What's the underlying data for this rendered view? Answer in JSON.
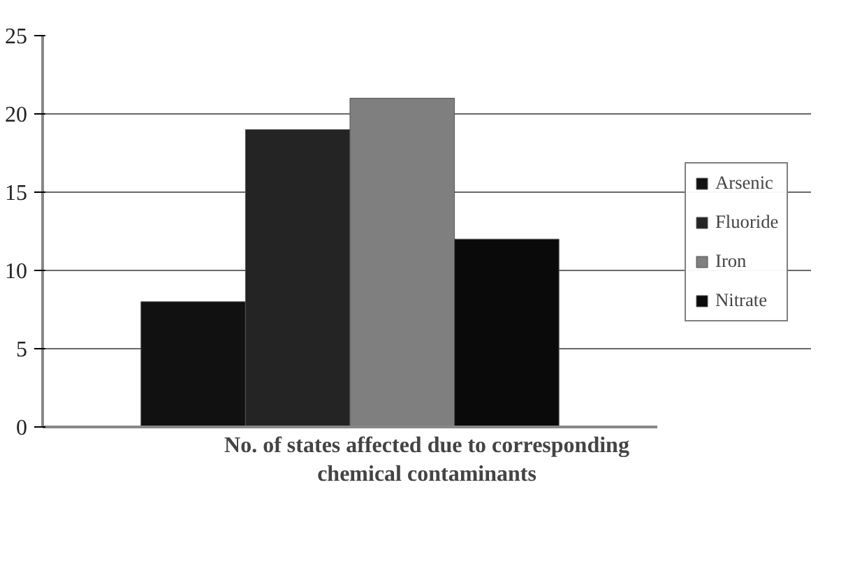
{
  "chart_data": {
    "type": "bar",
    "xlabel": "No. of states affected due to corresponding chemical contaminants",
    "categories": [
      null
    ],
    "series": [
      {
        "name": "Arsenic",
        "color": "#111111",
        "values": [
          8
        ]
      },
      {
        "name": "Fluoride",
        "color": "#242424",
        "values": [
          19
        ]
      },
      {
        "name": "Iron",
        "color": "#7f7f7f",
        "values": [
          21
        ]
      },
      {
        "name": "Nitrate",
        "color": "#0a0a0a",
        "values": [
          12
        ]
      }
    ],
    "ylim": [
      0,
      25
    ],
    "yticks": [
      0,
      5,
      10,
      15,
      20,
      25
    ],
    "grid": "y",
    "legend": "right"
  }
}
